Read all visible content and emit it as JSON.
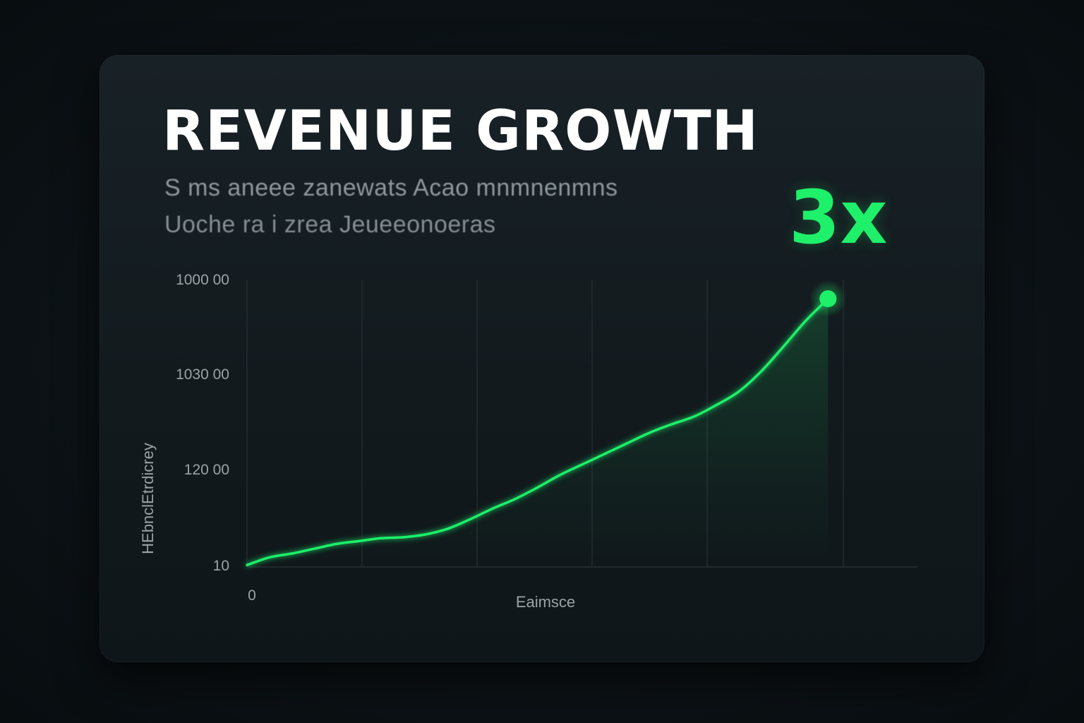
{
  "title": "REVENUE GROWTH",
  "subtitle_lines": [
    "S  ms  aneee  zanewats  Acao  mnmnenmns",
    "Uoche  ra  i  zrea  Jeueeonoeras"
  ],
  "highlight": {
    "text": "3x",
    "color": "#1ff06a"
  },
  "chart_data": {
    "type": "line",
    "xlabel": "Eaimsce",
    "ylabel": "HEbnclEtrdicrey",
    "x_ticks": [
      "0"
    ],
    "y_ticks": [
      "1000 00",
      "1030 00",
      "120 00",
      "10"
    ],
    "ylim": [
      0,
      3
    ],
    "grid": "vertical",
    "x": [
      0,
      0.2,
      0.4,
      0.6,
      0.8,
      1.0,
      1.2,
      1.4,
      1.6,
      1.8,
      2.0,
      2.2,
      2.4,
      2.6,
      2.8,
      3.0,
      3.2,
      3.4,
      3.6,
      3.8,
      4.0,
      4.2,
      4.4,
      4.6,
      4.8,
      5.0,
      5.2
    ],
    "series": [
      {
        "values": [
          0.02,
          0.1,
          0.14,
          0.19,
          0.24,
          0.27,
          0.3,
          0.31,
          0.34,
          0.4,
          0.5,
          0.61,
          0.71,
          0.83,
          0.96,
          1.07,
          1.18,
          1.29,
          1.4,
          1.49,
          1.57,
          1.69,
          1.83,
          2.04,
          2.3,
          2.57,
          2.8
        ],
        "color": "#1ff06a"
      }
    ],
    "end_marker": true
  },
  "colors": {
    "accent": "#1ff06a",
    "background": "#0c1215",
    "card": "#151d21",
    "title": "#ffffff",
    "muted_text": "#8e979b"
  }
}
